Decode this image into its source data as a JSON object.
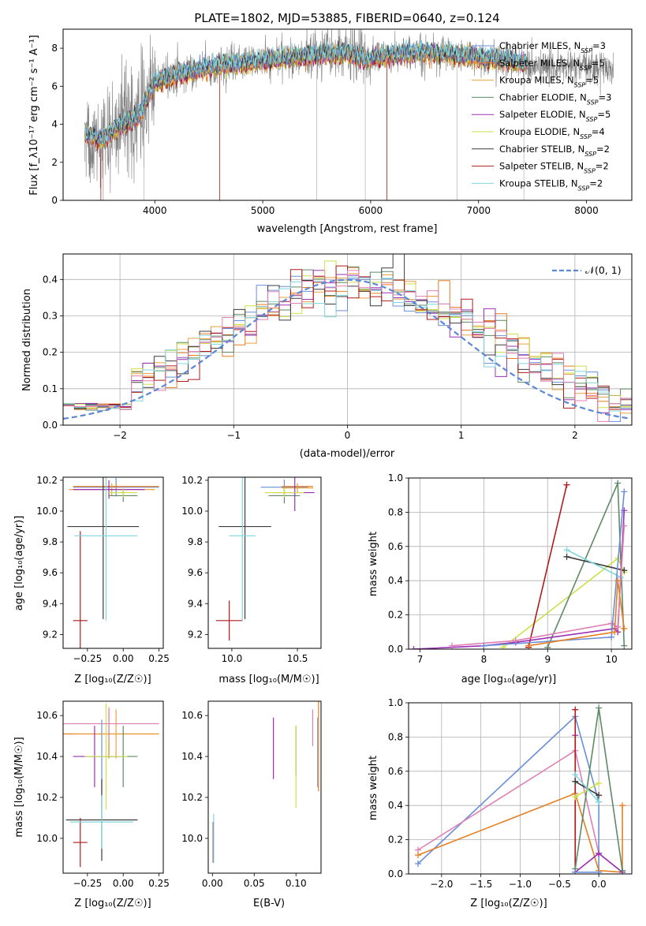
{
  "colors": {
    "chabrier_miles": "#6a8fd8",
    "salpeter_miles": "#e67e22",
    "kroupa_miles": "#e8a040",
    "chabrier_elodie": "#5e8a66",
    "salpeter_elodie": "#9b30b5",
    "kroupa_elodie": "#cde04a",
    "chabrier_stelib": "#3c3c3c",
    "salpeter_stelib": "#b01b1b",
    "kroupa_stelib": "#7fd6dc",
    "data": "#808080",
    "pink": "#e07fb3"
  },
  "models": [
    {
      "key": "chabrier_miles",
      "label_pre": "Chabrier MILES, N",
      "label_post": "=3"
    },
    {
      "key": "salpeter_miles",
      "label_pre": "Salpeter MILES, N",
      "label_post": "=5"
    },
    {
      "key": "kroupa_miles",
      "label_pre": "Kroupa MILES, N",
      "label_post": "=5"
    },
    {
      "key": "chabrier_elodie",
      "label_pre": "Chabrier ELODIE, N",
      "label_post": "=3"
    },
    {
      "key": "salpeter_elodie",
      "label_pre": "Salpeter ELODIE, N",
      "label_post": "=5"
    },
    {
      "key": "kroupa_elodie",
      "label_pre": "Kroupa ELODIE, N",
      "label_post": "=4"
    },
    {
      "key": "chabrier_stelib",
      "label_pre": "Chabrier STELIB, N",
      "label_post": "=2"
    },
    {
      "key": "salpeter_stelib",
      "label_pre": "Salpeter STELIB, N",
      "label_post": "=2"
    },
    {
      "key": "kroupa_stelib",
      "label_pre": "Kroupa STELIB, N",
      "label_post": "=2"
    }
  ],
  "chart_data": [
    {
      "id": "spectrum",
      "type": "line",
      "title": "PLATE=1802, MJD=53885, FIBERID=0640, z=0.124",
      "xlabel": "wavelength [Angstrom, rest frame]",
      "ylabel": "Flux [f_λ10⁻¹⁷ erg cm⁻² s⁻¹ A⁻¹]",
      "xlim": [
        3150,
        8420
      ],
      "ylim": [
        0,
        9
      ],
      "xticks": [
        4000,
        5000,
        6000,
        7000,
        8000
      ],
      "yticks": [
        0,
        2,
        4,
        6,
        8
      ],
      "legend": "upper right",
      "continuum_x": [
        3350,
        3500,
        3700,
        3850,
        4000,
        4200,
        4400,
        4600,
        4800,
        5000,
        5200,
        5400,
        5600,
        5800,
        5950,
        6100,
        6300,
        6500,
        6700,
        6900,
        7100,
        7300,
        7450
      ],
      "continuum_y": [
        3.5,
        3.2,
        4.0,
        4.4,
        6.2,
        6.6,
        6.9,
        7.1,
        7.2,
        7.35,
        7.45,
        7.6,
        7.7,
        7.75,
        7.4,
        7.6,
        7.7,
        7.8,
        7.7,
        7.6,
        7.45,
        7.3,
        7.2
      ]
    },
    {
      "id": "residuals",
      "type": "histogram",
      "xlabel": "(data-model)/error",
      "ylabel": "Normed distribution",
      "xlim": [
        -2.5,
        2.5
      ],
      "ylim": [
        0,
        0.47
      ],
      "xticks": [
        -2,
        -1,
        0,
        1,
        2
      ],
      "yticks": [
        0.0,
        0.1,
        0.2,
        0.3,
        0.4
      ],
      "grid": true,
      "legend_label": "𝒩(0, 1)",
      "bins_start": -2.5,
      "bin_width": 0.1
    },
    {
      "id": "age_vs_Z",
      "type": "errorbar",
      "xlabel": "Z [log₁₀(Z/Z☉)]",
      "ylabel": "age  [log₁₀(age/yr)]",
      "xlim": [
        -0.42,
        0.28
      ],
      "ylim": [
        9.11,
        10.22
      ],
      "xticks": [
        -0.25,
        0.0,
        0.25
      ],
      "xticklabels": [
        "−0.25",
        "0.00",
        "0.25"
      ],
      "yticks": [
        9.2,
        9.4,
        9.6,
        9.8,
        10.0,
        10.2
      ],
      "points": [
        {
          "c": "chabrier_miles",
          "x": -0.05,
          "xe": 0.3,
          "y": 10.155,
          "ye": 0.06
        },
        {
          "c": "salpeter_miles",
          "x": -0.05,
          "xe": 0.3,
          "y": 10.16,
          "ye": 0.02
        },
        {
          "c": "kroupa_miles",
          "x": -0.08,
          "xe": 0.3,
          "y": 10.14,
          "ye": 0.04
        },
        {
          "c": "chabrier_elodie",
          "x": 0.0,
          "xe": 0.1,
          "y": 10.1,
          "ye": 0.04
        },
        {
          "c": "salpeter_elodie",
          "x": -0.1,
          "xe": 0.25,
          "y": 10.14,
          "ye": 0.06
        },
        {
          "c": "kroupa_elodie",
          "x": 0.0,
          "xe": 0.1,
          "y": 10.12,
          "ye": 0.03
        },
        {
          "c": "chabrier_stelib",
          "x": -0.14,
          "xe": 0.25,
          "y": 9.9,
          "ye": 0.6
        },
        {
          "c": "salpeter_stelib",
          "x": -0.3,
          "xe": 0.05,
          "y": 9.29,
          "ye": 0.58
        },
        {
          "c": "kroupa_stelib",
          "x": -0.12,
          "xe": 0.22,
          "y": 9.84,
          "ye": 0.55
        }
      ]
    },
    {
      "id": "age_vs_mass",
      "type": "errorbar",
      "xlabel": "mass [log₁₀(M/M☉)]",
      "xlim": [
        9.82,
        10.68
      ],
      "ylim": [
        9.11,
        10.22
      ],
      "xticks": [
        10.0,
        10.5
      ],
      "xticklabels": [
        "10.0",
        "10.5"
      ],
      "yticks": [
        9.2,
        9.4,
        9.6,
        9.8,
        10.0,
        10.2
      ],
      "points": [
        {
          "c": "chabrier_miles",
          "x": 10.4,
          "xe": 0.18,
          "y": 10.155,
          "ye": 0.05
        },
        {
          "c": "salpeter_miles",
          "x": 10.5,
          "xe": 0.12,
          "y": 10.16,
          "ye": 0.02
        },
        {
          "c": "kroupa_miles",
          "x": 10.5,
          "xe": 0.12,
          "y": 10.15,
          "ye": 0.03
        },
        {
          "c": "chabrier_elodie",
          "x": 10.4,
          "xe": 0.12,
          "y": 10.1,
          "ye": 0.05
        },
        {
          "c": "salpeter_elodie",
          "x": 10.48,
          "xe": 0.15,
          "y": 10.12,
          "ye": 0.12
        },
        {
          "c": "kroupa_elodie",
          "x": 10.4,
          "xe": 0.15,
          "y": 10.12,
          "ye": 0.03
        },
        {
          "c": "chabrier_stelib",
          "x": 10.1,
          "xe": 0.2,
          "y": 9.9,
          "ye": 0.6
        },
        {
          "c": "salpeter_stelib",
          "x": 9.98,
          "xe": 0.1,
          "y": 9.29,
          "ye": 0.13
        },
        {
          "c": "kroupa_stelib",
          "x": 10.08,
          "xe": 0.1,
          "y": 9.84,
          "ye": 0.55
        }
      ]
    },
    {
      "id": "mw_vs_age",
      "type": "line",
      "xlabel": "age  [log₁₀(age/yr)]",
      "ylabel": "mass weight",
      "xlim": [
        6.82,
        10.32
      ],
      "ylim": [
        0,
        1
      ],
      "xticks": [
        7,
        8,
        9,
        10
      ],
      "yticks": [
        0.0,
        0.2,
        0.4,
        0.6,
        0.8,
        1.0
      ],
      "yticklabels": [
        "0.0",
        "0.2",
        "0.4",
        "0.6",
        "0.8",
        "1.0"
      ],
      "grid": true,
      "series": [
        {
          "c": "kroupa_elodie",
          "x": [
            8.3,
            10.1,
            10.2
          ],
          "y": [
            0.01,
            0.53,
            0.45
          ]
        },
        {
          "c": "chabrier_elodie",
          "x": [
            9.0,
            10.1,
            10.2
          ],
          "y": [
            0.01,
            0.97,
            0.02
          ]
        },
        {
          "c": "salpeter_stelib",
          "x": [
            8.7,
            9.3,
            8.7
          ],
          "y": [
            0.01,
            0.96,
            0.01
          ]
        },
        {
          "c": "chabrier_stelib",
          "x": [
            9.3,
            10.2
          ],
          "y": [
            0.54,
            0.46
          ]
        },
        {
          "c": "kroupa_stelib",
          "x": [
            9.3,
            10.15
          ],
          "y": [
            0.58,
            0.42
          ]
        },
        {
          "c": "salpeter_elodie",
          "x": [
            6.9,
            8.0,
            8.5,
            10.05,
            10.1,
            10.2
          ],
          "y": [
            0.0,
            0.02,
            0.04,
            0.12,
            0.1,
            0.81
          ]
        },
        {
          "c": "pink",
          "x": [
            7.5,
            8.5,
            10.0,
            10.1,
            10.2
          ],
          "y": [
            0.02,
            0.05,
            0.15,
            0.13,
            0.72
          ]
        },
        {
          "c": "chabrier_miles",
          "x": [
            8.0,
            10.0,
            10.2
          ],
          "y": [
            0.02,
            0.07,
            0.92
          ]
        },
        {
          "c": "salpeter_miles",
          "x": [
            8.7,
            10.05,
            10.1,
            10.2
          ],
          "y": [
            0.02,
            0.1,
            0.4,
            0.12
          ]
        }
      ]
    },
    {
      "id": "mass_vs_Z",
      "type": "errorbar",
      "xlabel": "Z [log₁₀(Z/Z☉)]",
      "ylabel": "mass [log₁₀(M/M☉)]",
      "xlim": [
        -0.42,
        0.28
      ],
      "ylim": [
        9.83,
        10.67
      ],
      "xticks": [
        -0.25,
        0.0,
        0.25
      ],
      "xticklabels": [
        "−0.25",
        "0.00",
        "0.25"
      ],
      "yticks": [
        10.0,
        10.2,
        10.4,
        10.6
      ],
      "points": [
        {
          "c": "chabrier_miles",
          "x": -0.15,
          "xe": 0.15,
          "y": 10.4,
          "ye": 0.18
        },
        {
          "c": "salpeter_miles",
          "x": -0.1,
          "xe": 0.35,
          "y": 10.51,
          "ye": 0.12
        },
        {
          "c": "kroupa_miles",
          "x": -0.05,
          "xe": 0.3,
          "y": 10.51,
          "ye": 0.12
        },
        {
          "c": "chabrier_elodie",
          "x": 0.0,
          "xe": 0.1,
          "y": 10.4,
          "ye": 0.15
        },
        {
          "c": "salpeter_elodie",
          "x": -0.2,
          "xe": 0.15,
          "y": 10.4,
          "ye": 0.15
        },
        {
          "c": "kroupa_elodie",
          "x": -0.12,
          "xe": 0.15,
          "y": 10.4,
          "ye": 0.26
        },
        {
          "c": "chabrier_stelib",
          "x": -0.15,
          "xe": 0.25,
          "y": 10.09,
          "ye": 0.2
        },
        {
          "c": "salpeter_stelib",
          "x": -0.3,
          "xe": 0.05,
          "y": 9.98,
          "ye": 0.12
        },
        {
          "c": "kroupa_stelib",
          "x": -0.15,
          "xe": 0.22,
          "y": 10.08,
          "ye": 0.13
        },
        {
          "c": "pink",
          "x": -0.1,
          "xe": 0.35,
          "y": 10.56,
          "ye": 0.08
        }
      ]
    },
    {
      "id": "mass_vs_ebv",
      "type": "errorbar",
      "xlabel": "E(B-V)",
      "xlim": [
        -0.005,
        0.13
      ],
      "ylim": [
        9.83,
        10.67
      ],
      "xticks": [
        0.0,
        0.05,
        0.1
      ],
      "xticklabels": [
        "0.00",
        "0.05",
        "0.10"
      ],
      "yticks": [
        10.0,
        10.2,
        10.4,
        10.6
      ],
      "points": [
        {
          "c": "chabrier_miles",
          "x": 0.126,
          "xe": 0,
          "y": 10.42,
          "ye": 0.17
        },
        {
          "c": "salpeter_miles",
          "x": 0.127,
          "xe": 0,
          "y": 10.45,
          "ye": 0.22
        },
        {
          "c": "kroupa_miles",
          "x": 0.127,
          "xe": 0,
          "y": 10.42,
          "ye": 0.17
        },
        {
          "c": "chabrier_elodie",
          "x": 0.1,
          "xe": 0,
          "y": 10.43,
          "ye": 0.12
        },
        {
          "c": "salpeter_elodie",
          "x": 0.073,
          "xe": 0,
          "y": 10.44,
          "ye": 0.15
        },
        {
          "c": "kroupa_elodie",
          "x": 0.1,
          "xe": 0,
          "y": 10.35,
          "ye": 0.2
        },
        {
          "c": "chabrier_stelib",
          "x": 0.001,
          "xe": 0,
          "y": 9.98,
          "ye": 0.1
        },
        {
          "c": "salpeter_stelib",
          "x": 0.001,
          "xe": 0,
          "y": 9.98,
          "ye": 0.1
        },
        {
          "c": "kroupa_stelib",
          "x": 0.0015,
          "xe": 0,
          "y": 10.0,
          "ye": 0.12
        },
        {
          "c": "pink",
          "x": 0.12,
          "xe": 0,
          "y": 10.54,
          "ye": 0.09
        }
      ]
    },
    {
      "id": "mw_vs_Z",
      "type": "line",
      "xlabel": "Z [log₁₀(Z/Z☉)]",
      "ylabel": "mass weight",
      "xlim": [
        -2.42,
        0.42
      ],
      "ylim": [
        0,
        1
      ],
      "xticks": [
        -2.0,
        -1.5,
        -1.0,
        -0.5,
        0.0
      ],
      "xticklabels": [
        "−2.0",
        "−1.5",
        "−1.0",
        "−0.5",
        "0.0"
      ],
      "yticks": [
        0.0,
        0.2,
        0.4,
        0.6,
        0.8,
        1.0
      ],
      "yticklabels": [
        "0.0",
        "0.2",
        "0.4",
        "0.6",
        "0.8",
        "1.0"
      ],
      "grid": true,
      "series": [
        {
          "c": "chabrier_miles",
          "x": [
            -2.3,
            -0.3,
            0.0,
            0.0
          ],
          "y": [
            0.06,
            0.92,
            0.42,
            0.01
          ]
        },
        {
          "c": "pink",
          "x": [
            -2.3,
            -0.3,
            0.0,
            0.3
          ],
          "y": [
            0.14,
            0.72,
            0.12,
            0.01
          ]
        },
        {
          "c": "salpeter_miles",
          "x": [
            -2.3,
            -0.3,
            0.0,
            0.3,
            0.3
          ],
          "y": [
            0.11,
            0.47,
            0.02,
            0.01,
            0.4
          ]
        },
        {
          "c": "salpeter_elodie",
          "x": [
            -0.3,
            -0.3,
            0.0,
            0.3
          ],
          "y": [
            0.81,
            0.01,
            0.12,
            0.01
          ]
        },
        {
          "c": "salpeter_stelib",
          "x": [
            -0.3,
            -0.3
          ],
          "y": [
            0.96,
            0.01
          ]
        },
        {
          "c": "chabrier_elodie",
          "x": [
            -0.3,
            0.0,
            0.3
          ],
          "y": [
            0.03,
            0.97,
            0.02
          ]
        },
        {
          "c": "kroupa_elodie",
          "x": [
            -0.3,
            0.0
          ],
          "y": [
            0.45,
            0.53
          ]
        },
        {
          "c": "chabrier_stelib",
          "x": [
            -0.3,
            0.0
          ],
          "y": [
            0.54,
            0.46
          ]
        },
        {
          "c": "kroupa_stelib",
          "x": [
            -0.3,
            0.0
          ],
          "y": [
            0.58,
            0.42
          ]
        },
        {
          "c": "chabrier_miles",
          "x": [
            -0.3,
            0.0
          ],
          "y": [
            0.01,
            0.01
          ]
        }
      ]
    }
  ]
}
